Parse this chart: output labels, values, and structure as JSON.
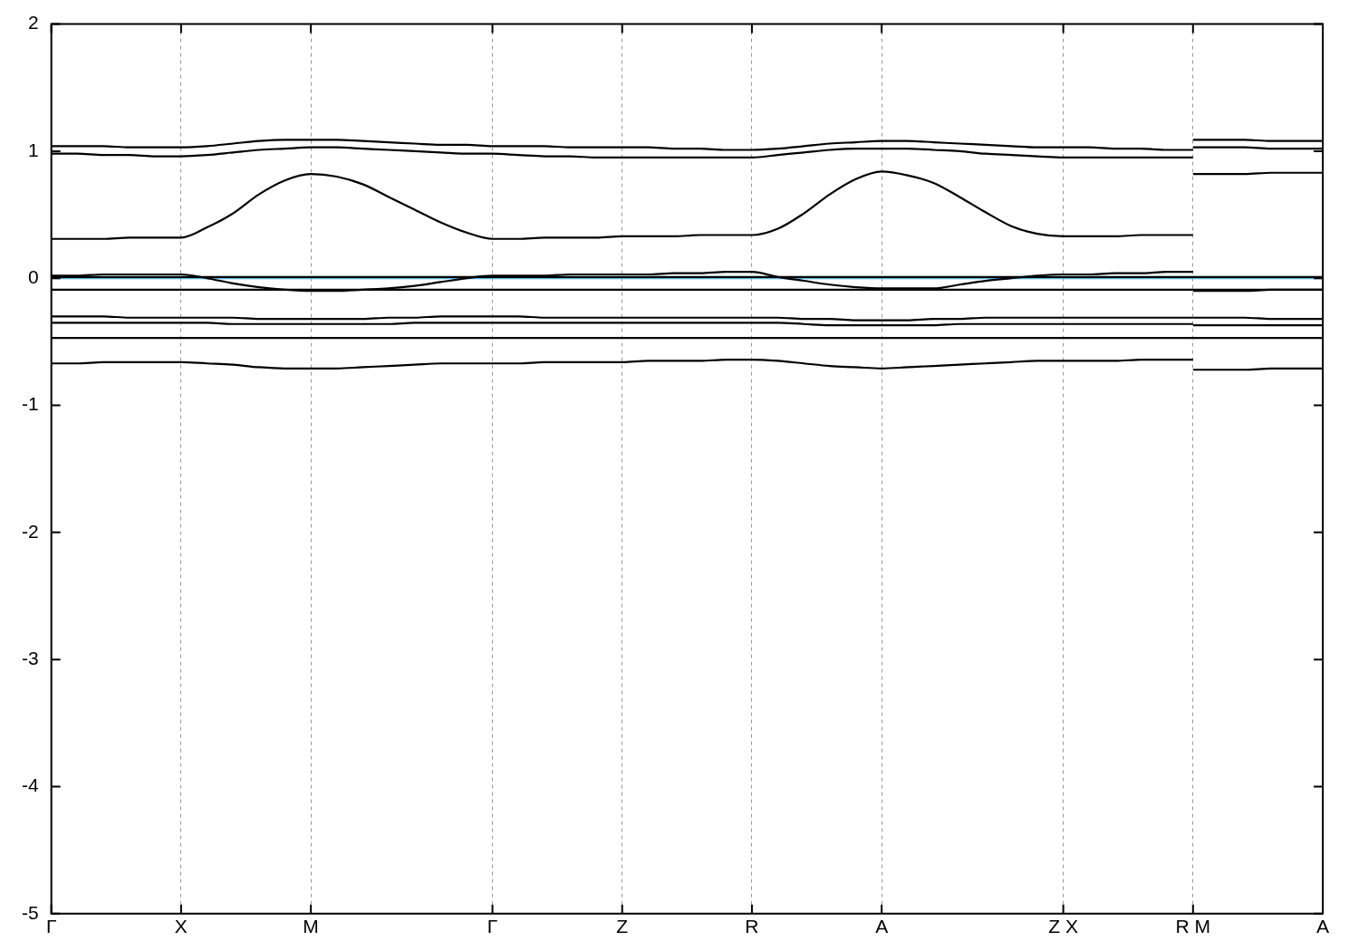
{
  "chart_data": {
    "type": "line",
    "categories": [
      "Γ",
      null,
      null,
      null,
      null,
      "X",
      null,
      null,
      null,
      null,
      "M",
      null,
      null,
      null,
      null,
      null,
      null,
      "Γ",
      null,
      null,
      null,
      null,
      "Z",
      null,
      null,
      null,
      null,
      "R",
      null,
      null,
      null,
      null,
      "A",
      null,
      null,
      null,
      null,
      null,
      null,
      "Z X",
      null,
      null,
      null,
      null,
      "R M",
      null,
      null,
      null,
      null,
      "A"
    ],
    "series": [
      {
        "color": "#000000",
        "values": [
          1.04,
          1.04,
          1.04,
          1.03,
          1.03,
          1.03,
          1.04,
          1.06,
          1.08,
          1.09,
          1.09,
          1.09,
          1.08,
          1.07,
          1.06,
          1.05,
          1.05,
          1.04,
          1.04,
          1.04,
          1.03,
          1.03,
          1.03,
          1.03,
          1.02,
          1.02,
          1.01,
          1.01,
          1.02,
          1.04,
          1.06,
          1.07,
          1.08,
          1.08,
          1.07,
          1.06,
          1.05,
          1.04,
          1.03,
          1.03,
          1.03,
          1.02,
          1.02,
          1.01,
          1.01,
          null,
          null,
          null,
          null,
          null
        ]
      },
      {
        "color": "#000000",
        "values": [
          null,
          null,
          null,
          null,
          null,
          null,
          null,
          null,
          null,
          null,
          null,
          null,
          null,
          null,
          null,
          null,
          null,
          null,
          null,
          null,
          null,
          null,
          null,
          null,
          null,
          null,
          null,
          null,
          null,
          null,
          null,
          null,
          null,
          null,
          null,
          null,
          null,
          null,
          null,
          null,
          null,
          null,
          null,
          null,
          1.09,
          1.09,
          1.09,
          1.08,
          1.08,
          1.08
        ]
      },
      {
        "color": "#000000",
        "values": [
          0.98,
          0.98,
          0.97,
          0.97,
          0.96,
          0.96,
          0.97,
          0.99,
          1.01,
          1.02,
          1.03,
          1.03,
          1.02,
          1.01,
          1.0,
          0.99,
          0.98,
          0.98,
          0.97,
          0.96,
          0.96,
          0.95,
          0.95,
          0.95,
          0.95,
          0.95,
          0.95,
          0.95,
          0.97,
          0.99,
          1.01,
          1.02,
          1.02,
          1.02,
          1.01,
          1.0,
          0.98,
          0.97,
          0.96,
          0.95,
          0.95,
          0.95,
          0.95,
          0.95,
          0.95,
          null,
          null,
          null,
          null,
          null
        ]
      },
      {
        "color": "#000000",
        "values": [
          null,
          null,
          null,
          null,
          null,
          null,
          null,
          null,
          null,
          null,
          null,
          null,
          null,
          null,
          null,
          null,
          null,
          null,
          null,
          null,
          null,
          null,
          null,
          null,
          null,
          null,
          null,
          null,
          null,
          null,
          null,
          null,
          null,
          null,
          null,
          null,
          null,
          null,
          null,
          null,
          null,
          null,
          null,
          null,
          1.03,
          1.03,
          1.03,
          1.02,
          1.02,
          1.02
        ]
      },
      {
        "color": "#000000",
        "values": [
          0.31,
          0.31,
          0.31,
          0.32,
          0.32,
          0.32,
          0.4,
          0.51,
          0.66,
          0.77,
          0.82,
          0.8,
          0.74,
          0.64,
          0.54,
          0.44,
          0.36,
          0.31,
          0.31,
          0.32,
          0.32,
          0.32,
          0.33,
          0.33,
          0.33,
          0.34,
          0.34,
          0.34,
          0.39,
          0.51,
          0.66,
          0.78,
          0.84,
          0.81,
          0.75,
          0.64,
          0.52,
          0.41,
          0.35,
          0.33,
          0.33,
          0.33,
          0.34,
          0.34,
          0.34,
          null,
          null,
          null,
          null,
          null
        ]
      },
      {
        "color": "#000000",
        "values": [
          null,
          null,
          null,
          null,
          null,
          null,
          null,
          null,
          null,
          null,
          null,
          null,
          null,
          null,
          null,
          null,
          null,
          null,
          null,
          null,
          null,
          null,
          null,
          null,
          null,
          null,
          null,
          null,
          null,
          null,
          null,
          null,
          null,
          null,
          null,
          null,
          null,
          null,
          null,
          null,
          null,
          null,
          null,
          null,
          0.82,
          0.82,
          0.82,
          0.83,
          0.83,
          0.83
        ]
      },
      {
        "color": "#000000",
        "values": [
          0.02,
          0.02,
          0.03,
          0.03,
          0.03,
          0.03,
          0.0,
          -0.04,
          -0.07,
          -0.09,
          -0.1,
          -0.1,
          -0.09,
          -0.08,
          -0.06,
          -0.03,
          0.0,
          0.02,
          0.02,
          0.02,
          0.03,
          0.03,
          0.03,
          0.03,
          0.04,
          0.04,
          0.05,
          0.05,
          0.01,
          -0.02,
          -0.05,
          -0.07,
          -0.08,
          -0.08,
          -0.08,
          -0.05,
          -0.02,
          0.0,
          0.02,
          0.03,
          0.03,
          0.04,
          0.04,
          0.05,
          0.05,
          null,
          null,
          null,
          null,
          null
        ]
      },
      {
        "color": "#000000",
        "values": [
          null,
          null,
          null,
          null,
          null,
          null,
          null,
          null,
          null,
          null,
          null,
          null,
          null,
          null,
          null,
          null,
          null,
          null,
          null,
          null,
          null,
          null,
          null,
          null,
          null,
          null,
          null,
          null,
          null,
          null,
          null,
          null,
          null,
          null,
          null,
          null,
          null,
          null,
          null,
          null,
          null,
          null,
          null,
          null,
          -0.1,
          -0.1,
          -0.1,
          -0.09,
          -0.09,
          -0.09
        ]
      },
      {
        "color": "#000000",
        "values": [
          0.01,
          0.01,
          0.01,
          0.01,
          0.01,
          0.01,
          0.01,
          0.01,
          0.01,
          0.01,
          0.01,
          0.01,
          0.01,
          0.01,
          0.01,
          0.01,
          0.01,
          0.01,
          0.01,
          0.01,
          0.01,
          0.01,
          0.01,
          0.01,
          0.01,
          0.01,
          0.01,
          0.01,
          0.01,
          0.01,
          0.01,
          0.01,
          0.01,
          0.01,
          0.01,
          0.01,
          0.01,
          0.01,
          0.01,
          0.01,
          0.01,
          0.01,
          0.01,
          0.01,
          0.01,
          0.01,
          0.01,
          0.01,
          0.01,
          0.01
        ]
      },
      {
        "color": "#000000",
        "values": [
          -0.09,
          -0.09,
          -0.09,
          -0.09,
          -0.09,
          -0.09,
          -0.09,
          -0.09,
          -0.09,
          -0.09,
          -0.09,
          -0.09,
          -0.09,
          -0.09,
          -0.09,
          -0.09,
          -0.09,
          -0.09,
          -0.09,
          -0.09,
          -0.09,
          -0.09,
          -0.09,
          -0.09,
          -0.09,
          -0.09,
          -0.09,
          -0.09,
          -0.09,
          -0.09,
          -0.09,
          -0.09,
          -0.09,
          -0.09,
          -0.09,
          -0.09,
          -0.09,
          -0.09,
          -0.09,
          -0.09,
          -0.09,
          -0.09,
          -0.09,
          -0.09,
          -0.09,
          -0.09,
          -0.09,
          -0.09,
          -0.09,
          -0.09
        ]
      },
      {
        "color": "#000000",
        "values": [
          -0.3,
          -0.3,
          -0.3,
          -0.31,
          -0.31,
          -0.31,
          -0.31,
          -0.31,
          -0.32,
          -0.32,
          -0.32,
          -0.32,
          -0.32,
          -0.31,
          -0.31,
          -0.3,
          -0.3,
          -0.3,
          -0.3,
          -0.31,
          -0.31,
          -0.31,
          -0.31,
          -0.31,
          -0.31,
          -0.31,
          -0.31,
          -0.31,
          -0.31,
          -0.32,
          -0.32,
          -0.33,
          -0.33,
          -0.33,
          -0.32,
          -0.32,
          -0.31,
          -0.31,
          -0.31,
          -0.31,
          -0.31,
          -0.31,
          -0.31,
          -0.31,
          -0.31,
          null,
          null,
          null,
          null,
          null
        ]
      },
      {
        "color": "#000000",
        "values": [
          null,
          null,
          null,
          null,
          null,
          null,
          null,
          null,
          null,
          null,
          null,
          null,
          null,
          null,
          null,
          null,
          null,
          null,
          null,
          null,
          null,
          null,
          null,
          null,
          null,
          null,
          null,
          null,
          null,
          null,
          null,
          null,
          null,
          null,
          null,
          null,
          null,
          null,
          null,
          null,
          null,
          null,
          null,
          null,
          -0.31,
          -0.31,
          -0.31,
          -0.32,
          -0.32,
          -0.32
        ]
      },
      {
        "color": "#000000",
        "values": [
          -0.35,
          -0.35,
          -0.35,
          -0.35,
          -0.35,
          -0.35,
          -0.35,
          -0.36,
          -0.36,
          -0.36,
          -0.36,
          -0.36,
          -0.36,
          -0.36,
          -0.35,
          -0.35,
          -0.35,
          -0.35,
          -0.35,
          -0.35,
          -0.35,
          -0.35,
          -0.35,
          -0.35,
          -0.35,
          -0.35,
          -0.35,
          -0.35,
          -0.35,
          -0.36,
          -0.37,
          -0.37,
          -0.37,
          -0.37,
          -0.37,
          -0.36,
          -0.36,
          -0.36,
          -0.36,
          -0.36,
          -0.36,
          -0.36,
          -0.36,
          -0.36,
          -0.36,
          null,
          null,
          null,
          null,
          null
        ]
      },
      {
        "color": "#000000",
        "values": [
          null,
          null,
          null,
          null,
          null,
          null,
          null,
          null,
          null,
          null,
          null,
          null,
          null,
          null,
          null,
          null,
          null,
          null,
          null,
          null,
          null,
          null,
          null,
          null,
          null,
          null,
          null,
          null,
          null,
          null,
          null,
          null,
          null,
          null,
          null,
          null,
          null,
          null,
          null,
          null,
          null,
          null,
          null,
          null,
          -0.37,
          -0.37,
          -0.37,
          -0.37,
          -0.37,
          -0.37
        ]
      },
      {
        "color": "#000000",
        "values": [
          -0.47,
          -0.47,
          -0.47,
          -0.47,
          -0.47,
          -0.47,
          -0.47,
          -0.47,
          -0.47,
          -0.47,
          -0.47,
          -0.47,
          -0.47,
          -0.47,
          -0.47,
          -0.47,
          -0.47,
          -0.47,
          -0.47,
          -0.47,
          -0.47,
          -0.47,
          -0.47,
          -0.47,
          -0.47,
          -0.47,
          -0.47,
          -0.47,
          -0.47,
          -0.47,
          -0.47,
          -0.47,
          -0.47,
          -0.47,
          -0.47,
          -0.47,
          -0.47,
          -0.47,
          -0.47,
          -0.47,
          -0.47,
          -0.47,
          -0.47,
          -0.47,
          -0.47,
          -0.47,
          -0.47,
          -0.47,
          -0.47,
          -0.47
        ]
      },
      {
        "color": "#000000",
        "values": [
          -0.67,
          -0.67,
          -0.66,
          -0.66,
          -0.66,
          -0.66,
          -0.67,
          -0.68,
          -0.7,
          -0.71,
          -0.71,
          -0.71,
          -0.7,
          -0.69,
          -0.68,
          -0.67,
          -0.67,
          -0.67,
          -0.67,
          -0.66,
          -0.66,
          -0.66,
          -0.66,
          -0.65,
          -0.65,
          -0.65,
          -0.64,
          -0.64,
          -0.65,
          -0.67,
          -0.69,
          -0.7,
          -0.71,
          -0.7,
          -0.69,
          -0.68,
          -0.67,
          -0.66,
          -0.65,
          -0.65,
          -0.65,
          -0.65,
          -0.64,
          -0.64,
          -0.64,
          null,
          null,
          null,
          null,
          null
        ]
      },
      {
        "color": "#000000",
        "values": [
          null,
          null,
          null,
          null,
          null,
          null,
          null,
          null,
          null,
          null,
          null,
          null,
          null,
          null,
          null,
          null,
          null,
          null,
          null,
          null,
          null,
          null,
          null,
          null,
          null,
          null,
          null,
          null,
          null,
          null,
          null,
          null,
          null,
          null,
          null,
          null,
          null,
          null,
          null,
          null,
          null,
          null,
          null,
          null,
          -0.72,
          -0.72,
          -0.72,
          -0.71,
          -0.71,
          -0.71
        ]
      }
    ],
    "ylim": [
      -5,
      2
    ],
    "yticks": [
      -5,
      -4,
      -3,
      -2,
      -1,
      0,
      1,
      2
    ],
    "ref_lines": [
      {
        "axis": "y",
        "value": 0,
        "color": "#56b4e9"
      }
    ],
    "grid": "x",
    "marker": "none",
    "line_style": "solid"
  }
}
